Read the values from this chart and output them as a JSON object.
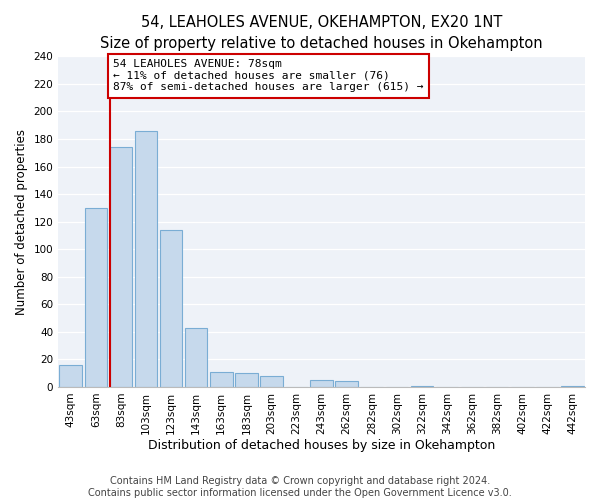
{
  "title": "54, LEAHOLES AVENUE, OKEHAMPTON, EX20 1NT",
  "subtitle": "Size of property relative to detached houses in Okehampton",
  "xlabel": "Distribution of detached houses by size in Okehampton",
  "ylabel": "Number of detached properties",
  "bar_labels": [
    "43sqm",
    "63sqm",
    "83sqm",
    "103sqm",
    "123sqm",
    "143sqm",
    "163sqm",
    "183sqm",
    "203sqm",
    "223sqm",
    "243sqm",
    "262sqm",
    "282sqm",
    "302sqm",
    "322sqm",
    "342sqm",
    "362sqm",
    "382sqm",
    "402sqm",
    "422sqm",
    "442sqm"
  ],
  "bar_values": [
    16,
    130,
    174,
    186,
    114,
    43,
    11,
    10,
    8,
    0,
    5,
    4,
    0,
    0,
    1,
    0,
    0,
    0,
    0,
    0,
    1
  ],
  "bar_color": "#c6d9ec",
  "bar_edge_color": "#7aadd4",
  "vline_color": "#cc0000",
  "annotation_text": "54 LEAHOLES AVENUE: 78sqm\n← 11% of detached houses are smaller (76)\n87% of semi-detached houses are larger (615) →",
  "annotation_box_edge_color": "#cc0000",
  "annotation_box_face_color": "#ffffff",
  "ylim": [
    0,
    240
  ],
  "yticks": [
    0,
    20,
    40,
    60,
    80,
    100,
    120,
    140,
    160,
    180,
    200,
    220,
    240
  ],
  "footer_line1": "Contains HM Land Registry data © Crown copyright and database right 2024.",
  "footer_line2": "Contains public sector information licensed under the Open Government Licence v3.0.",
  "bg_color": "#ffffff",
  "plot_bg_color": "#eef2f8",
  "grid_color": "#ffffff",
  "title_fontsize": 10.5,
  "xlabel_fontsize": 9,
  "ylabel_fontsize": 8.5,
  "tick_fontsize": 7.5,
  "footer_fontsize": 7
}
